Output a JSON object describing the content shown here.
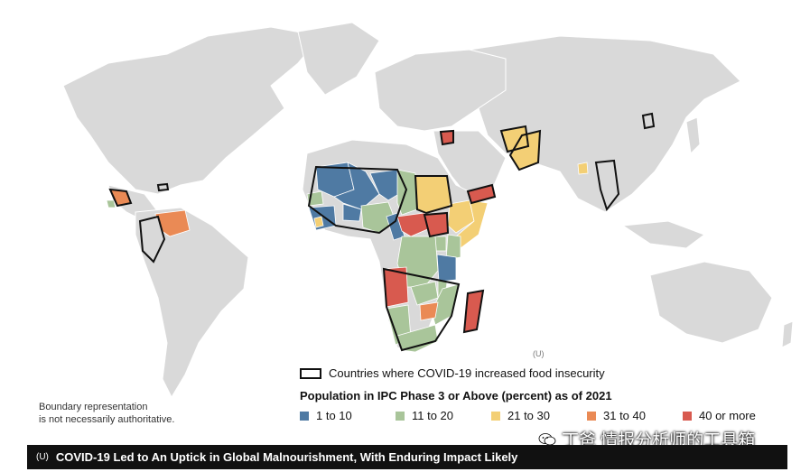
{
  "colors": {
    "land": "#d9d9d9",
    "bin_1_10": "#4f7aa3",
    "bin_11_20": "#a9c59a",
    "bin_21_30": "#f3cf75",
    "bin_31_40": "#ea8a55",
    "bin_40_plus": "#d85a4f",
    "outline": "#111111",
    "banner": "#111111"
  },
  "map": {
    "unclassified_mid": "(U)",
    "boundary_note_line1": "Boundary representation",
    "boundary_note_line2": "is not necessarily authoritative."
  },
  "legend": {
    "outline_label": "Countries where COVID-19 increased food insecurity",
    "title": "Population in IPC Phase 3 or Above (percent) as of 2021",
    "items": [
      {
        "label": "1 to 10",
        "color": "#4f7aa3"
      },
      {
        "label": "11 to 20",
        "color": "#a9c59a"
      },
      {
        "label": "21 to 30",
        "color": "#f3cf75"
      },
      {
        "label": "31 to 40",
        "color": "#ea8a55"
      },
      {
        "label": "40 or more",
        "color": "#d85a4f"
      }
    ]
  },
  "banner": {
    "classification": "(U)",
    "title": "COVID-19 Led to An Uptick in Global Malnourishment, With Enduring Impact Likely"
  },
  "watermark": {
    "icon": "wechat-icon",
    "text": "丁爸 情报分析师的工具箱"
  }
}
